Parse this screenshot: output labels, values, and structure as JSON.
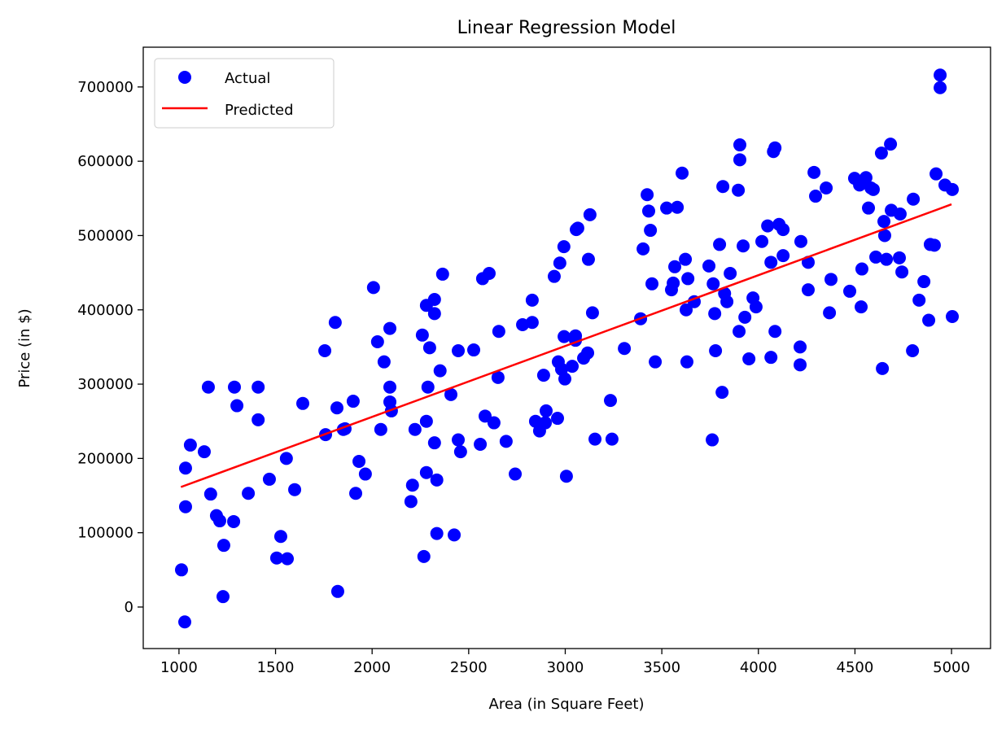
{
  "chart_data": {
    "type": "scatter",
    "title": "Linear Regression Model",
    "xlabel": "Area (in Square Feet)",
    "ylabel": "Price (in $)",
    "xlim": [
      815,
      5202
    ],
    "ylim": [
      -55900,
      753500
    ],
    "xticks": [
      1000,
      1500,
      2000,
      2500,
      3000,
      3500,
      4000,
      4500,
      5000
    ],
    "xtick_labels": [
      "1000",
      "1500",
      "2000",
      "2500",
      "3000",
      "3500",
      "4000",
      "4500",
      "5000"
    ],
    "yticks": [
      0,
      100000,
      200000,
      300000,
      400000,
      500000,
      600000,
      700000
    ],
    "ytick_labels": [
      "0",
      "100000",
      "200000",
      "300000",
      "400000",
      "500000",
      "600000",
      "700000"
    ],
    "grid": false,
    "legend": {
      "placement": "top-left",
      "entries": [
        "Actual",
        "Predicted"
      ]
    },
    "colors": {
      "actual": "#0000ff",
      "predicted": "#ff0000"
    },
    "series": [
      {
        "name": "Actual",
        "type": "scatter",
        "points": [
          [
            1013,
            50000
          ],
          [
            1030,
            -20000
          ],
          [
            1034,
            187000
          ],
          [
            1059,
            218000
          ],
          [
            1034,
            135000
          ],
          [
            1131,
            209000
          ],
          [
            1152,
            296000
          ],
          [
            1164,
            152000
          ],
          [
            1194,
            123000
          ],
          [
            1211,
            116000
          ],
          [
            1232,
            83000
          ],
          [
            1228,
            14000
          ],
          [
            1287,
            296000
          ],
          [
            1283,
            115000
          ],
          [
            1300,
            271000
          ],
          [
            1359,
            153000
          ],
          [
            1410,
            296000
          ],
          [
            1410,
            252000
          ],
          [
            1468,
            172000
          ],
          [
            1527,
            95000
          ],
          [
            1506,
            66000
          ],
          [
            1561,
            65000
          ],
          [
            1556,
            200000
          ],
          [
            1599,
            158000
          ],
          [
            1641,
            274000
          ],
          [
            1755,
            345000
          ],
          [
            1759,
            232000
          ],
          [
            1809,
            383000
          ],
          [
            1818,
            268000
          ],
          [
            1822,
            21000
          ],
          [
            1851,
            239000
          ],
          [
            1860,
            240000
          ],
          [
            1902,
            277000
          ],
          [
            1915,
            153000
          ],
          [
            1932,
            196000
          ],
          [
            1965,
            179000
          ],
          [
            2007,
            430000
          ],
          [
            2028,
            357000
          ],
          [
            2045,
            239000
          ],
          [
            2062,
            330000
          ],
          [
            2092,
            375000
          ],
          [
            2092,
            296000
          ],
          [
            2092,
            276000
          ],
          [
            2100,
            264000
          ],
          [
            2201,
            142000
          ],
          [
            2209,
            164000
          ],
          [
            2222,
            239000
          ],
          [
            2260,
            366000
          ],
          [
            2268,
            68000
          ],
          [
            2281,
            406000
          ],
          [
            2281,
            250000
          ],
          [
            2281,
            181000
          ],
          [
            2289,
            296000
          ],
          [
            2298,
            349000
          ],
          [
            2323,
            414000
          ],
          [
            2323,
            395000
          ],
          [
            2323,
            221000
          ],
          [
            2335,
            171000
          ],
          [
            2335,
            99000
          ],
          [
            2352,
            318000
          ],
          [
            2365,
            448000
          ],
          [
            2408,
            286000
          ],
          [
            2425,
            97000
          ],
          [
            2446,
            345000
          ],
          [
            2446,
            225000
          ],
          [
            2458,
            209000
          ],
          [
            2526,
            346000
          ],
          [
            2560,
            219000
          ],
          [
            2572,
            442000
          ],
          [
            2585,
            257000
          ],
          [
            2606,
            449000
          ],
          [
            2631,
            248000
          ],
          [
            2652,
            309000
          ],
          [
            2656,
            371000
          ],
          [
            2694,
            223000
          ],
          [
            2741,
            179000
          ],
          [
            2779,
            380000
          ],
          [
            2829,
            413000
          ],
          [
            2829,
            383000
          ],
          [
            2846,
            250000
          ],
          [
            2867,
            237000
          ],
          [
            2888,
            312000
          ],
          [
            2897,
            248000
          ],
          [
            2901,
            264000
          ],
          [
            2943,
            445000
          ],
          [
            2960,
            254000
          ],
          [
            2964,
            330000
          ],
          [
            2972,
            463000
          ],
          [
            2981,
            320000
          ],
          [
            2993,
            485000
          ],
          [
            2994,
            364000
          ],
          [
            2998,
            307000
          ],
          [
            3006,
            176000
          ],
          [
            3036,
            324000
          ],
          [
            3053,
            359000
          ],
          [
            3053,
            365000
          ],
          [
            3057,
            508000
          ],
          [
            3065,
            510000
          ],
          [
            3095,
            335000
          ],
          [
            3116,
            342000
          ],
          [
            3120,
            468000
          ],
          [
            3128,
            528000
          ],
          [
            3141,
            396000
          ],
          [
            3154,
            226000
          ],
          [
            3234,
            278000
          ],
          [
            3242,
            226000
          ],
          [
            3306,
            348000
          ],
          [
            3390,
            388000
          ],
          [
            3403,
            482000
          ],
          [
            3424,
            555000
          ],
          [
            3432,
            533000
          ],
          [
            3441,
            507000
          ],
          [
            3449,
            435000
          ],
          [
            3466,
            330000
          ],
          [
            3525,
            537000
          ],
          [
            3550,
            427000
          ],
          [
            3559,
            436000
          ],
          [
            3567,
            458000
          ],
          [
            3580,
            538000
          ],
          [
            3605,
            584000
          ],
          [
            3622,
            468000
          ],
          [
            3626,
            400000
          ],
          [
            3630,
            330000
          ],
          [
            3635,
            442000
          ],
          [
            3668,
            411000
          ],
          [
            3744,
            459000
          ],
          [
            3761,
            225000
          ],
          [
            3766,
            435000
          ],
          [
            3774,
            395000
          ],
          [
            3778,
            345000
          ],
          [
            3799,
            488000
          ],
          [
            3812,
            289000
          ],
          [
            3816,
            566000
          ],
          [
            3825,
            422000
          ],
          [
            3837,
            411000
          ],
          [
            3854,
            449000
          ],
          [
            3896,
            561000
          ],
          [
            3900,
            371000
          ],
          [
            3904,
            622000
          ],
          [
            3904,
            602000
          ],
          [
            3921,
            486000
          ],
          [
            3930,
            390000
          ],
          [
            3951,
            334000
          ],
          [
            3972,
            416000
          ],
          [
            3988,
            404000
          ],
          [
            4018,
            492000
          ],
          [
            4048,
            513000
          ],
          [
            4065,
            464000
          ],
          [
            4065,
            336000
          ],
          [
            4078,
            613000
          ],
          [
            4086,
            618000
          ],
          [
            4086,
            371000
          ],
          [
            4107,
            515000
          ],
          [
            4128,
            508000
          ],
          [
            4128,
            473000
          ],
          [
            4216,
            350000
          ],
          [
            4216,
            326000
          ],
          [
            4220,
            492000
          ],
          [
            4258,
            464000
          ],
          [
            4258,
            427000
          ],
          [
            4288,
            585000
          ],
          [
            4296,
            553000
          ],
          [
            4351,
            564000
          ],
          [
            4368,
            396000
          ],
          [
            4376,
            441000
          ],
          [
            4473,
            425000
          ],
          [
            4498,
            577000
          ],
          [
            4524,
            568000
          ],
          [
            4532,
            404000
          ],
          [
            4536,
            455000
          ],
          [
            4557,
            578000
          ],
          [
            4570,
            537000
          ],
          [
            4583,
            564000
          ],
          [
            4595,
            562000
          ],
          [
            4608,
            471000
          ],
          [
            4637,
            611000
          ],
          [
            4642,
            321000
          ],
          [
            4650,
            519000
          ],
          [
            4654,
            500000
          ],
          [
            4663,
            468000
          ],
          [
            4684,
            623000
          ],
          [
            4688,
            534000
          ],
          [
            4730,
            470000
          ],
          [
            4734,
            529000
          ],
          [
            4743,
            451000
          ],
          [
            4798,
            345000
          ],
          [
            4802,
            549000
          ],
          [
            4832,
            413000
          ],
          [
            4857,
            438000
          ],
          [
            4882,
            386000
          ],
          [
            4890,
            488000
          ],
          [
            4911,
            487000
          ],
          [
            4920,
            583000
          ],
          [
            4941,
            716000
          ],
          [
            4941,
            699000
          ],
          [
            4966,
            568000
          ],
          [
            5004,
            562000
          ],
          [
            5004,
            391000
          ]
        ]
      },
      {
        "name": "Predicted",
        "type": "line",
        "points": [
          [
            1010,
            161500
          ],
          [
            5000,
            542000
          ]
        ]
      }
    ]
  }
}
